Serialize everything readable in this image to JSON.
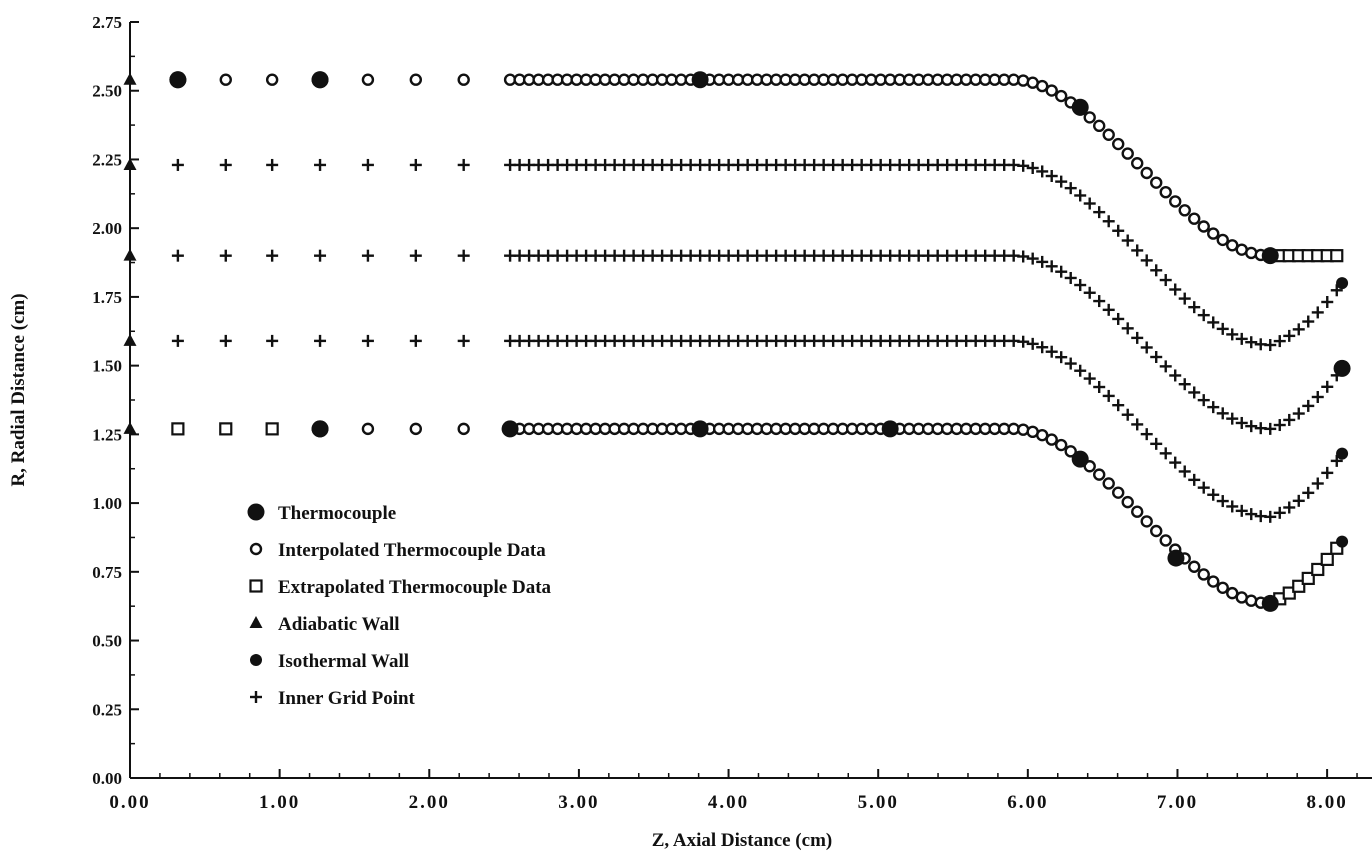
{
  "chart_data": {
    "type": "scatter",
    "title": "",
    "xlabel": "Z,  Axial  Distance  (cm)",
    "ylabel": "R,  Radial  Distance  (cm)",
    "xlim": [
      0,
      8.3
    ],
    "ylim": [
      0,
      2.75
    ],
    "x_ticks": [
      "0.00",
      "1.00",
      "2.00",
      "3.00",
      "4.00",
      "5.00",
      "6.00",
      "7.00",
      "8.00"
    ],
    "y_ticks": [
      "0.00",
      "0.25",
      "0.50",
      "0.75",
      "1.00",
      "1.25",
      "1.50",
      "1.75",
      "2.00",
      "2.25",
      "2.50",
      "2.75"
    ],
    "grid": false,
    "legend_position": "bottom-left",
    "legend": [
      {
        "marker": "thermocouple",
        "label": "Thermocouple"
      },
      {
        "marker": "interpolated",
        "label": "Interpolated Thermocouple Data"
      },
      {
        "marker": "extrapolated",
        "label": "Extrapolated Thermocouple Data"
      },
      {
        "marker": "adiabatic",
        "label": "Adiabatic Wall"
      },
      {
        "marker": "isothermal",
        "label": "Isothermal Wall"
      },
      {
        "marker": "inner",
        "label": "Inner Grid Point"
      }
    ],
    "geometry": {
      "outer_wall_r": 2.54,
      "outer_throat_r": 1.9,
      "inner_wall_r": 1.27,
      "inner_throat_r": 0.635,
      "inner_rows_r": [
        2.23,
        1.9,
        1.59
      ],
      "coarse_x": [
        0.32,
        0.64,
        0.95,
        1.27,
        1.59,
        1.91,
        2.23
      ],
      "fine_x_start": 2.54,
      "taper_start_x": 5.9,
      "taper_end_x": 7.62,
      "x_end": 8.1,
      "adiabatic_x": 0.0,
      "inner_exit_r": [
        1.8,
        1.49,
        1.18
      ],
      "lower_exit_r": 0.86
    },
    "series": [
      {
        "name": "Thermocouple",
        "points": [
          [
            0.32,
            2.54
          ],
          [
            1.27,
            2.54
          ],
          [
            3.81,
            2.54
          ],
          [
            6.35,
            2.44
          ],
          [
            7.62,
            1.9
          ],
          [
            1.27,
            1.27
          ],
          [
            2.54,
            1.27
          ],
          [
            3.81,
            1.27
          ],
          [
            5.08,
            1.27
          ],
          [
            6.35,
            1.16
          ],
          [
            6.99,
            0.8
          ],
          [
            7.62,
            0.635
          ],
          [
            8.1,
            1.49
          ]
        ]
      },
      {
        "name": "Extrapolated Thermocouple Data",
        "points": [
          [
            0.32,
            1.27
          ],
          [
            0.64,
            1.27
          ],
          [
            0.95,
            1.27
          ],
          [
            7.7,
            0.65
          ],
          [
            7.8,
            0.7
          ],
          [
            7.9,
            0.75
          ],
          [
            8.0,
            0.83
          ]
        ]
      },
      {
        "name": "Adiabatic Wall",
        "points": [
          [
            0.0,
            2.54
          ],
          [
            0.0,
            2.23
          ],
          [
            0.0,
            1.9
          ],
          [
            0.0,
            1.59
          ],
          [
            0.0,
            1.27
          ]
        ]
      },
      {
        "name": "Isothermal Wall",
        "points": [
          [
            3.81,
            2.54
          ],
          [
            7.62,
            1.9
          ],
          [
            3.81,
            1.27
          ],
          [
            5.08,
            1.27
          ],
          [
            7.62,
            0.635
          ],
          [
            8.1,
            1.8
          ],
          [
            8.1,
            1.18
          ],
          [
            8.1,
            0.86
          ]
        ]
      }
    ]
  }
}
